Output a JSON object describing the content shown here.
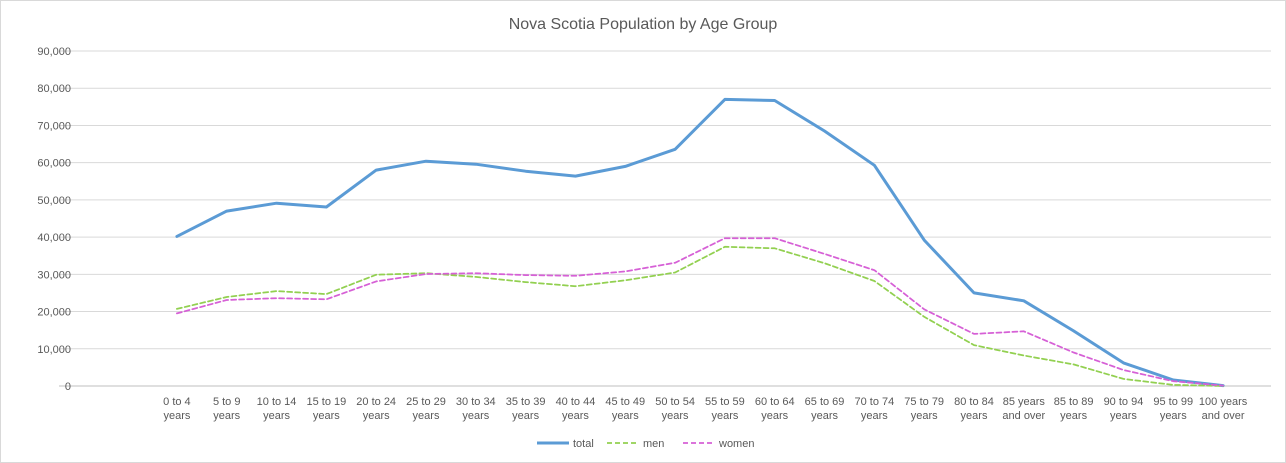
{
  "chart_data": {
    "type": "line",
    "title": "Nova Scotia Population by Age Group",
    "xlabel": "",
    "ylabel": "",
    "ylim": [
      0,
      90000
    ],
    "yticks": [
      0,
      10000,
      20000,
      30000,
      40000,
      50000,
      60000,
      70000,
      80000,
      90000
    ],
    "ytick_labels": [
      "0",
      "10,000",
      "20,000",
      "30,000",
      "40,000",
      "50,000",
      "60,000",
      "70,000",
      "80,000",
      "90,000"
    ],
    "grid": true,
    "legend_position": "bottom",
    "categories": [
      [
        "0 to 4",
        "years"
      ],
      [
        "5 to 9",
        "years"
      ],
      [
        "10 to 14",
        "years"
      ],
      [
        "15 to 19",
        "years"
      ],
      [
        "20 to 24",
        "years"
      ],
      [
        "25 to 29",
        "years"
      ],
      [
        "30 to 34",
        "years"
      ],
      [
        "35 to 39",
        "years"
      ],
      [
        "40 to 44",
        "years"
      ],
      [
        "45 to 49",
        "years"
      ],
      [
        "50 to 54",
        "years"
      ],
      [
        "55 to 59",
        "years"
      ],
      [
        "60 to 64",
        "years"
      ],
      [
        "65 to 69",
        "years"
      ],
      [
        "70 to 74",
        "years"
      ],
      [
        "75 to 79",
        "years"
      ],
      [
        "80 to 84",
        "years"
      ],
      [
        "85 years",
        "and over"
      ],
      [
        "85 to 89",
        "years"
      ],
      [
        "90 to 94",
        "years"
      ],
      [
        "95 to 99",
        "years"
      ],
      [
        "100 years",
        "and over"
      ]
    ],
    "series": [
      {
        "name": "total",
        "color": "#5b9bd5",
        "dash": "solid",
        "values": [
          40200,
          47000,
          49100,
          48100,
          58000,
          60400,
          59600,
          57700,
          56400,
          59000,
          63600,
          77000,
          76700,
          68500,
          59300,
          39200,
          25000,
          22900,
          14800,
          6200,
          1600,
          100
        ]
      },
      {
        "name": "men",
        "color": "#92d050",
        "dash": "dashed",
        "values": [
          20700,
          23900,
          25500,
          24700,
          29900,
          30300,
          29300,
          27900,
          26800,
          28400,
          30500,
          37400,
          37000,
          33000,
          28200,
          18600,
          11000,
          8200,
          5800,
          1900,
          300,
          0
        ]
      },
      {
        "name": "women",
        "color": "#d660d6",
        "dash": "dashed",
        "values": [
          19500,
          23100,
          23600,
          23300,
          28100,
          30100,
          30300,
          29800,
          29600,
          30800,
          33100,
          39700,
          39700,
          35500,
          31100,
          20600,
          14000,
          14700,
          9000,
          4300,
          1300,
          100
        ]
      }
    ]
  }
}
